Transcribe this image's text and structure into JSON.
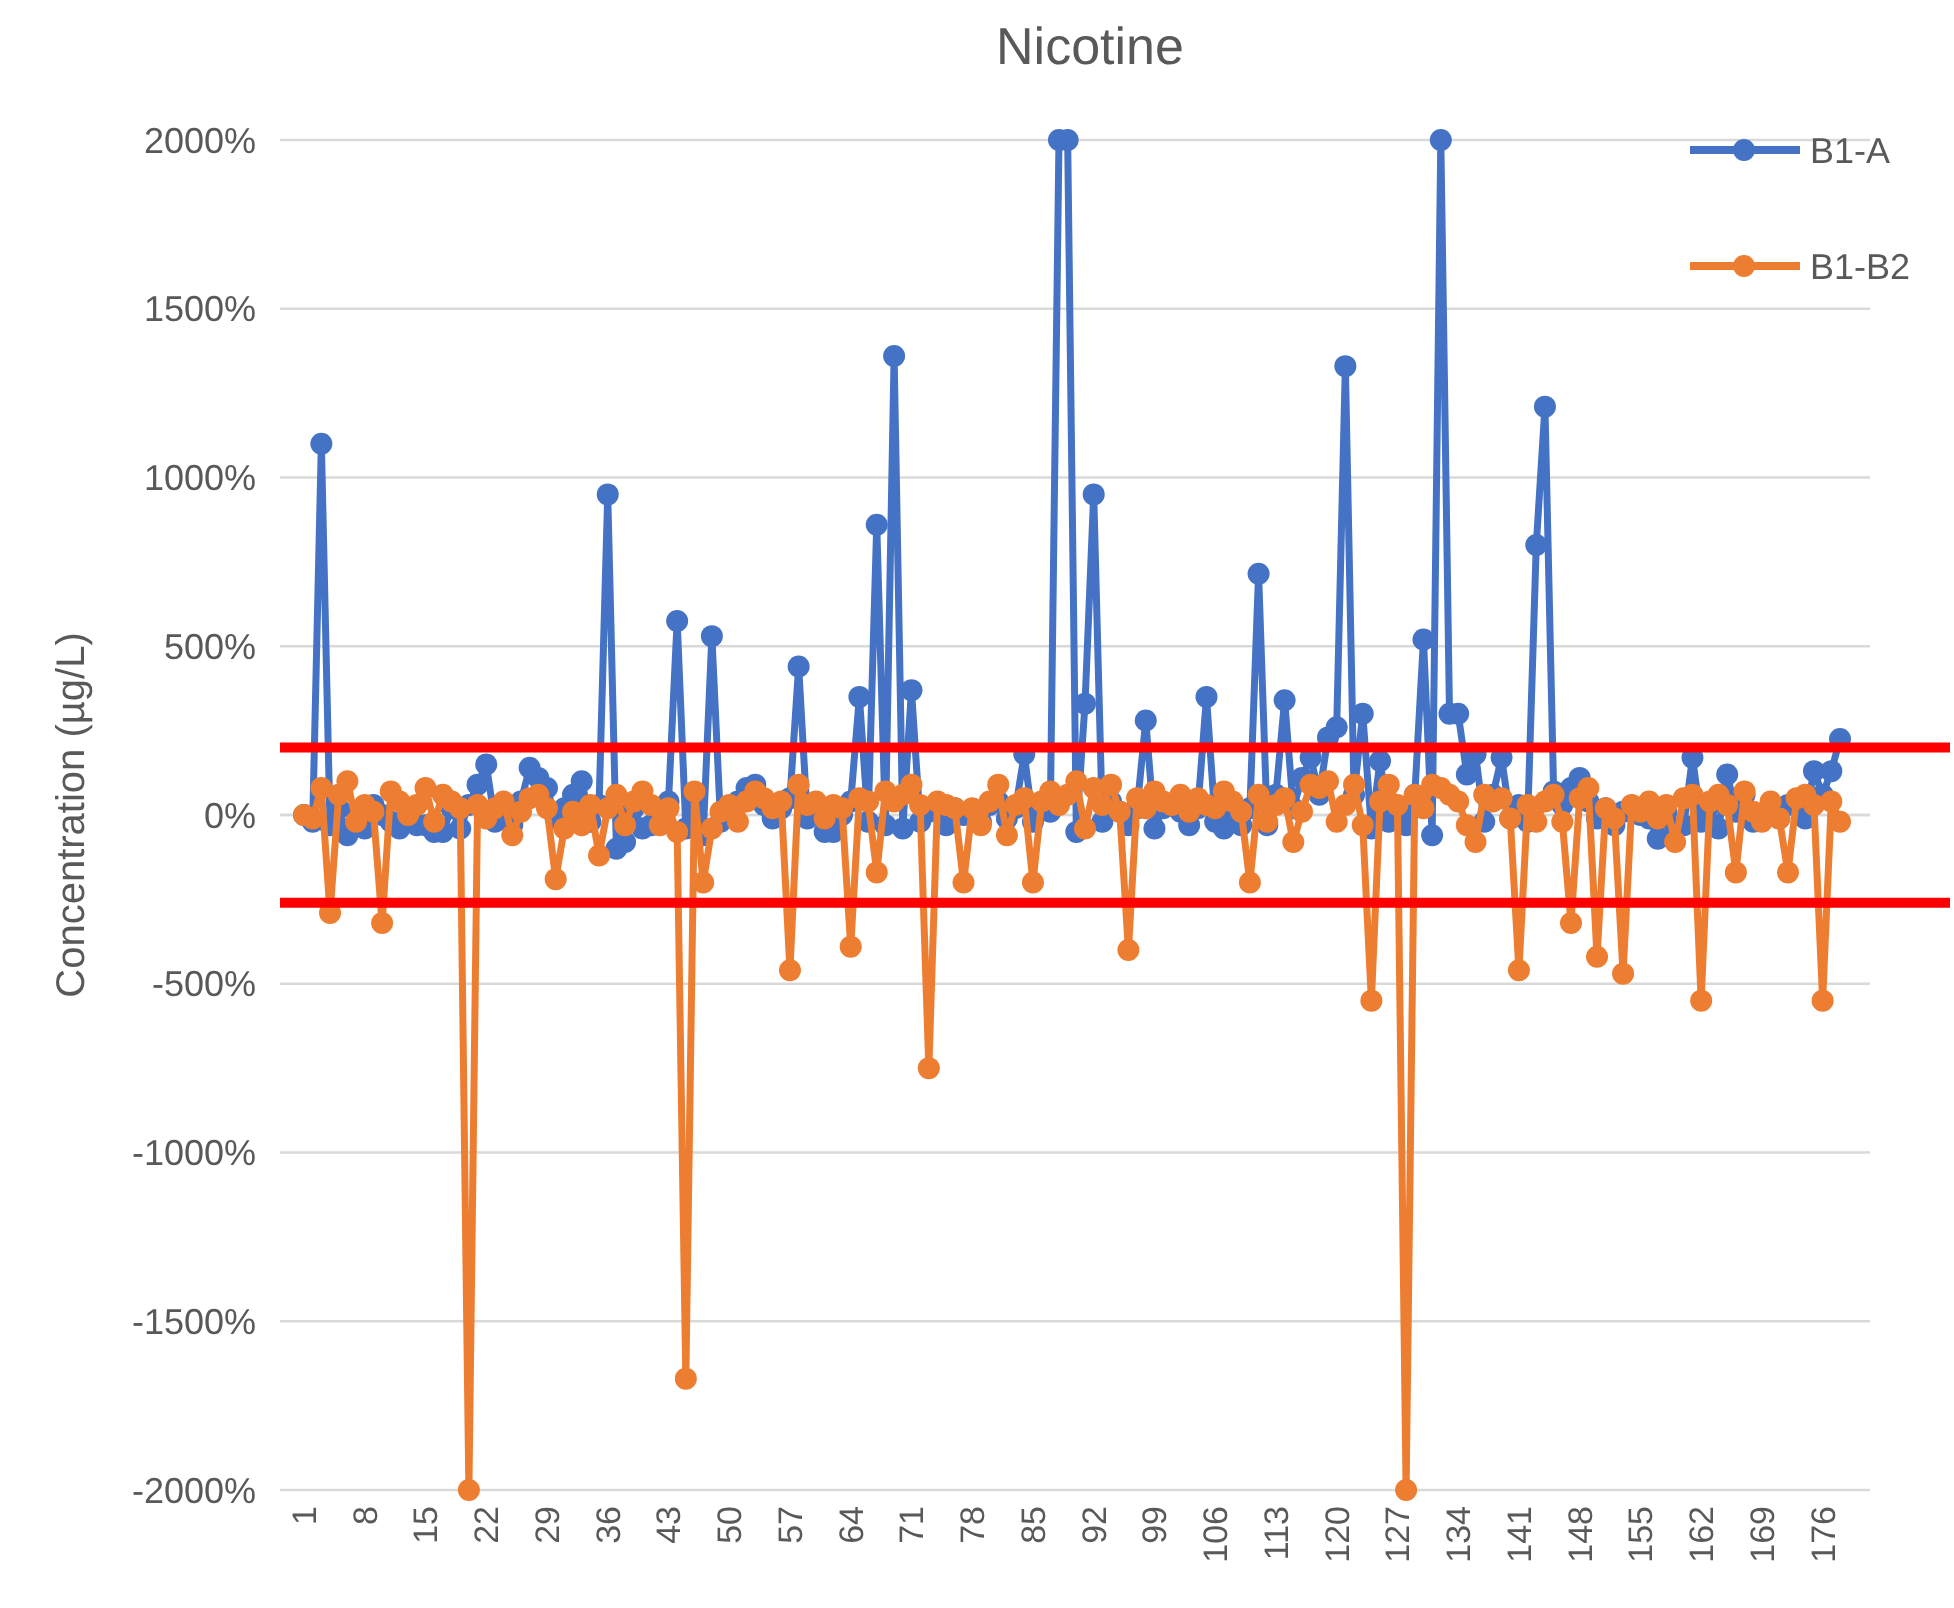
{
  "chart_data": {
    "type": "line",
    "title": "Nicotine",
    "ylabel": "Concentration (µg/L)",
    "categories": [
      "1",
      null,
      null,
      null,
      null,
      null,
      null,
      "8",
      null,
      null,
      null,
      null,
      null,
      null,
      "15",
      null,
      null,
      null,
      null,
      null,
      null,
      "22",
      null,
      null,
      null,
      null,
      null,
      null,
      "29",
      null,
      null,
      null,
      null,
      null,
      null,
      "36",
      null,
      null,
      null,
      null,
      null,
      null,
      "43",
      null,
      null,
      null,
      null,
      null,
      null,
      "50",
      null,
      null,
      null,
      null,
      null,
      null,
      "57",
      null,
      null,
      null,
      null,
      null,
      null,
      "64",
      null,
      null,
      null,
      null,
      null,
      null,
      "71",
      null,
      null,
      null,
      null,
      null,
      null,
      "78",
      null,
      null,
      null,
      null,
      null,
      null,
      "85",
      null,
      null,
      null,
      null,
      null,
      null,
      "92",
      null,
      null,
      null,
      null,
      null,
      null,
      "99",
      null,
      null,
      null,
      null,
      null,
      null,
      "106",
      null,
      null,
      null,
      null,
      null,
      null,
      "113",
      null,
      null,
      null,
      null,
      null,
      null,
      "120",
      null,
      null,
      null,
      null,
      null,
      null,
      "127",
      null,
      null,
      null,
      null,
      null,
      null,
      "134",
      null,
      null,
      null,
      null,
      null,
      null,
      "141",
      null,
      null,
      null,
      null,
      null,
      null,
      "148",
      null,
      null,
      null,
      null,
      null,
      null,
      "155",
      null,
      null,
      null,
      null,
      null,
      null,
      "162",
      null,
      null,
      null,
      null,
      null,
      null,
      "169",
      null,
      null,
      null,
      null,
      null,
      null,
      "176",
      null,
      null
    ],
    "series": [
      {
        "name": "B1-A",
        "color": "#4472c4",
        "values": [
          0,
          -20,
          1100,
          -30,
          20,
          -60,
          10,
          -40,
          30,
          0,
          -20,
          -40,
          10,
          -30,
          -30,
          -50,
          -50,
          20,
          -40,
          30,
          90,
          150,
          -20,
          10,
          -30,
          40,
          140,
          110,
          80,
          -10,
          20,
          60,
          100,
          -20,
          30,
          950,
          -100,
          -80,
          20,
          -40,
          -30,
          10,
          40,
          575,
          -40,
          20,
          -60,
          530,
          -20,
          10,
          40,
          80,
          90,
          30,
          -10,
          20,
          50,
          440,
          -10,
          30,
          -50,
          -50,
          0,
          40,
          350,
          -20,
          860,
          -30,
          1360,
          -40,
          370,
          -20,
          10,
          30,
          -30,
          20,
          0,
          10,
          -20,
          30,
          40,
          -10,
          20,
          180,
          -20,
          30,
          10,
          2000,
          2000,
          -50,
          330,
          950,
          -20,
          40,
          10,
          -30,
          20,
          280,
          -40,
          20,
          30,
          10,
          -30,
          20,
          350,
          -20,
          -40,
          10,
          -30,
          20,
          715,
          -30,
          60,
          340,
          20,
          110,
          170,
          60,
          230,
          260,
          1330,
          60,
          300,
          -40,
          160,
          -20,
          20,
          -30,
          60,
          520,
          -60,
          2000,
          300,
          300,
          120,
          180,
          -20,
          60,
          170,
          -10,
          30,
          -20,
          800,
          1210,
          70,
          30,
          80,
          110,
          40,
          -10,
          20,
          -30,
          10,
          20,
          0,
          -10,
          -70,
          10,
          -40,
          -30,
          170,
          -20,
          30,
          -40,
          120,
          10,
          60,
          -20,
          0,
          20,
          -10,
          30,
          40,
          -10,
          130,
          60,
          130,
          225
        ]
      },
      {
        "name": "B1-B2",
        "color": "#ed7d31",
        "values": [
          0,
          -10,
          80,
          -290,
          60,
          100,
          -20,
          30,
          10,
          -320,
          70,
          40,
          0,
          30,
          80,
          -20,
          60,
          40,
          20,
          -2000,
          30,
          -10,
          20,
          40,
          -60,
          10,
          50,
          60,
          20,
          -190,
          -40,
          10,
          -30,
          30,
          -120,
          20,
          60,
          -30,
          40,
          70,
          30,
          -30,
          20,
          -50,
          -1670,
          70,
          -200,
          -40,
          10,
          30,
          -20,
          40,
          70,
          50,
          20,
          40,
          -460,
          90,
          30,
          40,
          -10,
          30,
          20,
          -390,
          50,
          40,
          -170,
          70,
          40,
          60,
          90,
          30,
          -750,
          40,
          30,
          20,
          -200,
          20,
          -30,
          40,
          90,
          -60,
          30,
          50,
          -200,
          40,
          70,
          30,
          60,
          100,
          -40,
          80,
          30,
          90,
          10,
          -400,
          50,
          20,
          70,
          40,
          30,
          60,
          10,
          50,
          30,
          20,
          70,
          40,
          10,
          -200,
          60,
          -20,
          30,
          50,
          -80,
          10,
          90,
          80,
          100,
          -20,
          30,
          90,
          -30,
          -550,
          40,
          90,
          30,
          -2000,
          60,
          20,
          90,
          80,
          60,
          40,
          -30,
          -80,
          60,
          40,
          50,
          -10,
          -460,
          30,
          -20,
          40,
          60,
          -20,
          -320,
          50,
          80,
          -420,
          20,
          -10,
          -470,
          30,
          10,
          40,
          -10,
          30,
          -80,
          50,
          60,
          -550,
          40,
          60,
          30,
          -170,
          70,
          10,
          -20,
          40,
          -10,
          -170,
          50,
          60,
          30,
          -550,
          40,
          -20
        ]
      }
    ],
    "ylim": [
      -2000,
      2000
    ],
    "yticks": [
      {
        "value": -2000,
        "label": "-2000%"
      },
      {
        "value": -1500,
        "label": "-1500%"
      },
      {
        "value": -1000,
        "label": "-1000%"
      },
      {
        "value": -500,
        "label": "-500%"
      },
      {
        "value": 0,
        "label": "0%"
      },
      {
        "value": 500,
        "label": "500%"
      },
      {
        "value": 1000,
        "label": "1000%"
      },
      {
        "value": 1500,
        "label": "1500%"
      },
      {
        "value": 2000,
        "label": "2000%"
      }
    ],
    "grid": "y",
    "legend": "top right",
    "marker": "circle",
    "line_style": "solid",
    "ref_lines": [
      {
        "axis": "y",
        "value": 200,
        "color": "#ff0000"
      },
      {
        "axis": "y",
        "value": -260,
        "color": "#ff0000"
      }
    ]
  }
}
